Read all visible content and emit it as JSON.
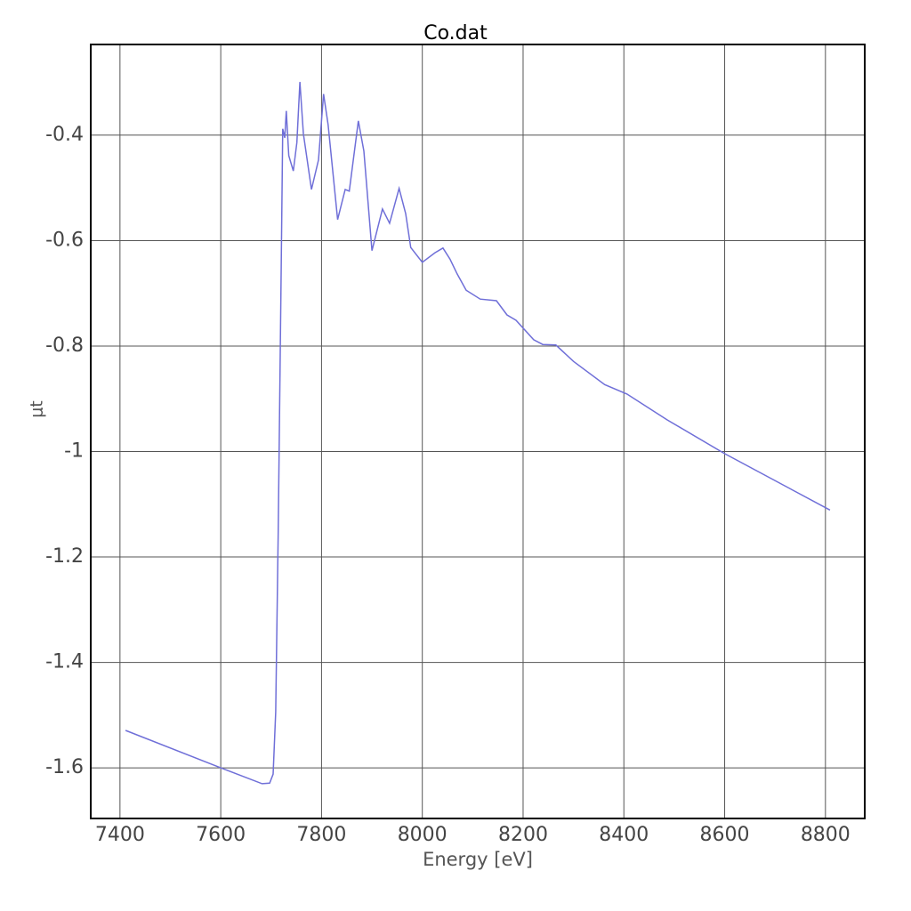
{
  "chart_data": {
    "type": "line",
    "title": "Co.dat",
    "x_label": "Energy [eV]",
    "y_label": "μt",
    "xlim": [
      7342,
      8878
    ],
    "ylim": [
      -1.696,
      -0.228
    ],
    "xticks": [
      7400,
      7600,
      7800,
      8000,
      8200,
      8400,
      8600,
      8800
    ],
    "yticks": [
      -1.6,
      -1.4,
      -1.2,
      -1,
      -0.8,
      -0.6,
      -0.4
    ],
    "grid": true,
    "series": [
      {
        "name": "Co.dat",
        "color": "#6f6fd8",
        "x": [
          7411,
          7600,
          7682,
          7697,
          7704,
          7709,
          7714,
          7720,
          7723,
          7727,
          7730,
          7735,
          7744,
          7751,
          7757,
          7764,
          7780,
          7794,
          7804,
          7813,
          7832,
          7847,
          7855,
          7873,
          7884,
          7900,
          7921,
          7935,
          7954,
          7967,
          7977,
          8000,
          8025,
          8041,
          8055,
          8069,
          8087,
          8115,
          8147,
          8168,
          8186,
          8221,
          8239,
          8265,
          8300,
          8362,
          8406,
          8486,
          8600,
          8809
        ],
        "values": [
          -1.529,
          -1.6,
          -1.63,
          -1.629,
          -1.612,
          -1.494,
          -1.156,
          -0.65,
          -0.388,
          -0.405,
          -0.354,
          -0.439,
          -0.468,
          -0.414,
          -0.299,
          -0.397,
          -0.503,
          -0.447,
          -0.322,
          -0.38,
          -0.56,
          -0.503,
          -0.506,
          -0.373,
          -0.43,
          -0.619,
          -0.54,
          -0.567,
          -0.501,
          -0.549,
          -0.613,
          -0.641,
          -0.623,
          -0.614,
          -0.635,
          -0.663,
          -0.694,
          -0.711,
          -0.714,
          -0.741,
          -0.751,
          -0.788,
          -0.797,
          -0.798,
          -0.829,
          -0.873,
          -0.891,
          -0.94,
          -1.004,
          -1.111
        ]
      }
    ]
  }
}
